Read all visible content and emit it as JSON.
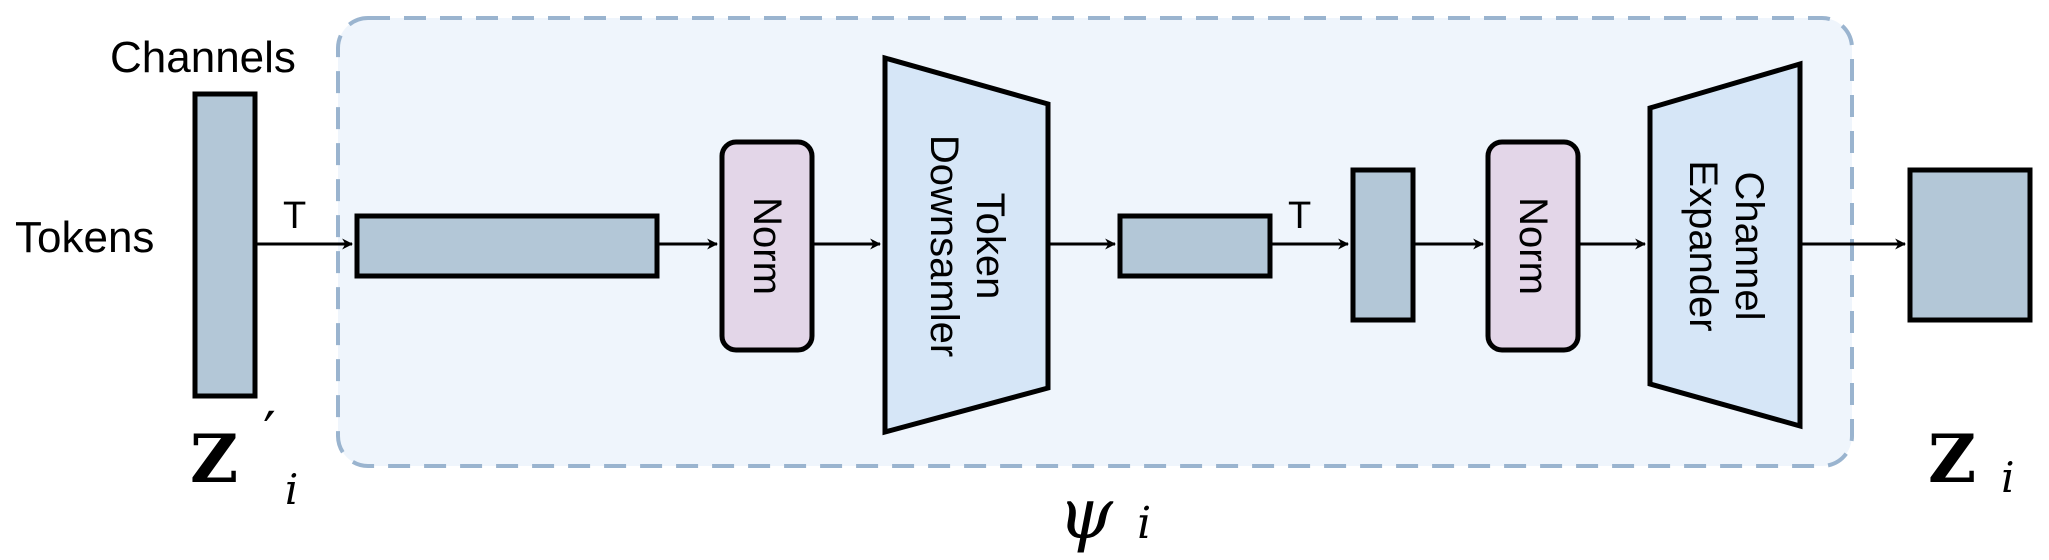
{
  "labels": {
    "channels": "Channels",
    "tokens": "Tokens",
    "transpose_1": "T",
    "transpose_2": "T",
    "norm_1": "Norm",
    "norm_2": "Norm",
    "downsampler_line1": "Token",
    "downsampler_line2": "Downsamler",
    "expander_line1": "Channel",
    "expander_line2": "Expander"
  },
  "math": {
    "input_base": "Z",
    "input_prime": "′",
    "input_sub": "i",
    "output_base": "Z",
    "output_sub": "i",
    "module_base": "ψ",
    "module_sub": "i"
  },
  "colors": {
    "tensor_fill": "#b3c7d7",
    "norm_fill": "#e3d6e8",
    "block_fill": "#d6e6f7",
    "region_fill": "#eff5fc",
    "region_stroke": "#9ab4cf",
    "stroke": "#000000"
  }
}
